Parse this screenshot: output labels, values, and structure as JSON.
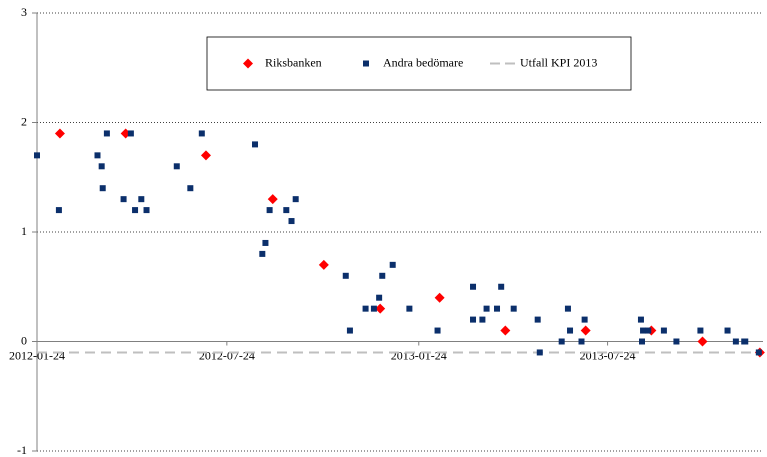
{
  "chart_data": {
    "type": "scatter",
    "ylim": [
      -1,
      3
    ],
    "yticks": [
      -1,
      0,
      1,
      2,
      3
    ],
    "grid": true,
    "xlim": [
      "2012-01-24",
      "2013-12-20"
    ],
    "xticks": [
      "2012-01-24",
      "2012-07-24",
      "2013-01-24",
      "2013-07-24"
    ],
    "legend": "top",
    "series": [
      {
        "name": "Riksbanken",
        "color": "#ff0000",
        "marker": "diamond",
        "x": [
          "2012-02-15",
          "2012-04-18",
          "2012-07-04",
          "2012-09-06",
          "2012-10-25",
          "2012-12-18",
          "2013-02-13",
          "2013-04-17",
          "2013-07-03",
          "2013-09-04",
          "2013-10-23",
          "2013-12-17"
        ],
        "values": [
          1.9,
          1.9,
          1.7,
          1.3,
          0.7,
          0.3,
          0.4,
          0.1,
          0.1,
          0.1,
          0.0,
          -0.1
        ]
      },
      {
        "name": "Andra bedömare",
        "color": "#0b2f6b",
        "marker": "square",
        "x": [
          "2012-01-24",
          "2012-02-14",
          "2012-03-22",
          "2012-03-26",
          "2012-03-27",
          "2012-03-31",
          "2012-04-16",
          "2012-04-23",
          "2012-04-27",
          "2012-05-03",
          "2012-05-08",
          "2012-06-06",
          "2012-06-19",
          "2012-06-30",
          "2012-08-20",
          "2012-08-27",
          "2012-08-30",
          "2012-09-03",
          "2012-09-19",
          "2012-09-24",
          "2012-09-28",
          "2012-11-15",
          "2012-11-19",
          "2012-12-04",
          "2012-12-12",
          "2012-12-17",
          "2012-12-20",
          "2012-12-30",
          "2013-01-15",
          "2013-02-11",
          "2013-03-17",
          "2013-03-17",
          "2013-03-26",
          "2013-03-30",
          "2013-04-09",
          "2013-04-13",
          "2013-04-25",
          "2013-05-18",
          "2013-05-20",
          "2013-06-10",
          "2013-06-16",
          "2013-06-18",
          "2013-06-29",
          "2013-07-02",
          "2013-08-25",
          "2013-08-26",
          "2013-08-27",
          "2013-09-01",
          "2013-09-16",
          "2013-09-28",
          "2013-10-21",
          "2013-11-16",
          "2013-11-24",
          "2013-12-02",
          "2013-12-03",
          "2013-12-16"
        ],
        "values": [
          1.7,
          1.2,
          1.7,
          1.6,
          1.4,
          1.9,
          1.3,
          1.9,
          1.2,
          1.3,
          1.2,
          1.6,
          1.4,
          1.9,
          1.8,
          0.8,
          0.9,
          1.2,
          1.2,
          1.1,
          1.3,
          0.6,
          0.1,
          0.3,
          0.3,
          0.4,
          0.6,
          0.7,
          0.3,
          0.1,
          0.5,
          0.2,
          0.2,
          0.3,
          0.3,
          0.5,
          0.3,
          0.2,
          -0.1,
          0.0,
          0.3,
          0.1,
          0.0,
          0.2,
          0.2,
          0.0,
          0.1,
          0.1,
          0.1,
          0.0,
          0.1,
          0.1,
          0.0,
          0.0,
          0.0,
          -0.1
        ]
      }
    ],
    "reference_lines": [
      {
        "name": "Utfall KPI 2013",
        "value": -0.1,
        "color": "#bfbfbf"
      }
    ]
  }
}
